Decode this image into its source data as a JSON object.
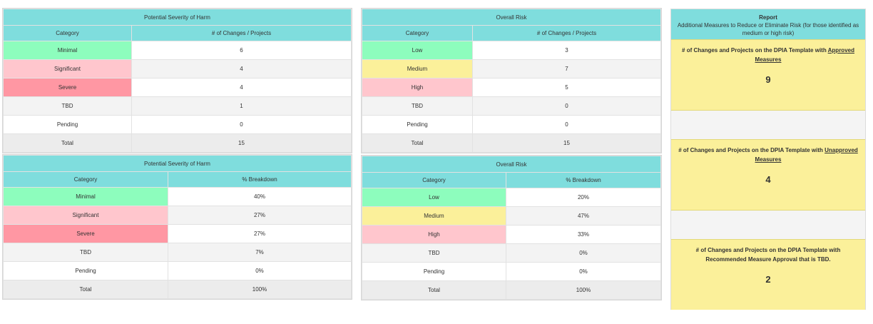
{
  "severity_counts": {
    "title": "Potential Severity of Harm",
    "headers": [
      "Category",
      "# of Changes / Projects"
    ],
    "rows": [
      {
        "category": "Minimal",
        "value": "6",
        "color": "#8dfdbd"
      },
      {
        "category": "Significant",
        "value": "4",
        "color": "#ffc6cd"
      },
      {
        "category": "Severe",
        "value": "4",
        "color": "#ff97a3"
      },
      {
        "category": "TBD",
        "value": "1",
        "color": ""
      },
      {
        "category": "Pending",
        "value": "0",
        "color": ""
      },
      {
        "category": "Total",
        "value": "15",
        "color": ""
      }
    ]
  },
  "risk_counts": {
    "title": "Overall Risk",
    "headers": [
      "Category",
      "# of Changes / Projects"
    ],
    "rows": [
      {
        "category": "Low",
        "value": "3",
        "color": "#8dfdbd"
      },
      {
        "category": "Medium",
        "value": "7",
        "color": "#fbf09a"
      },
      {
        "category": "High",
        "value": "5",
        "color": "#ffc6cd"
      },
      {
        "category": "TBD",
        "value": "0",
        "color": ""
      },
      {
        "category": "Pending",
        "value": "0",
        "color": ""
      },
      {
        "category": "Total",
        "value": "15",
        "color": ""
      }
    ]
  },
  "severity_breakdown": {
    "title": "Potential Severity of Harm",
    "headers": [
      "Category",
      "% Breakdown"
    ],
    "rows": [
      {
        "category": "Minimal",
        "value": "40%",
        "color": "#8dfdbd"
      },
      {
        "category": "Significant",
        "value": "27%",
        "color": "#ffc6cd"
      },
      {
        "category": "Severe",
        "value": "27%",
        "color": "#ff97a3"
      },
      {
        "category": "TBD",
        "value": "7%",
        "color": ""
      },
      {
        "category": "Pending",
        "value": "0%",
        "color": ""
      },
      {
        "category": "Total",
        "value": "100%",
        "color": ""
      }
    ]
  },
  "risk_breakdown": {
    "title": "Overall Risk",
    "headers": [
      "Category",
      "% Breakdown"
    ],
    "rows": [
      {
        "category": "Low",
        "value": "20%",
        "color": "#8dfdbd"
      },
      {
        "category": "Medium",
        "value": "47%",
        "color": "#fbf09a"
      },
      {
        "category": "High",
        "value": "33%",
        "color": "#ffc6cd"
      },
      {
        "category": "TBD",
        "value": "0%",
        "color": ""
      },
      {
        "category": "Pending",
        "value": "0%",
        "color": ""
      },
      {
        "category": "Total",
        "value": "100%",
        "color": ""
      }
    ]
  },
  "report": {
    "title": "Report",
    "subtitle": "Additional Measures to Reduce or Eliminate Risk (for those identified as medium or high risk)",
    "cards": [
      {
        "text_before": "# of Changes and Projects on the DPIA Template with ",
        "text_underlined": "Approved Measures",
        "text_after": "",
        "value": "9"
      },
      {
        "text_before": "# of Changes and Projects on the DPIA Template with ",
        "text_underlined": "Unapproved Measures",
        "text_after": "",
        "value": "4"
      },
      {
        "text_before": "# of Changes and Projects on the DPIA Template with Recommended Measure Approval that is TBD.",
        "text_underlined": "",
        "text_after": "",
        "value": "2"
      }
    ]
  }
}
